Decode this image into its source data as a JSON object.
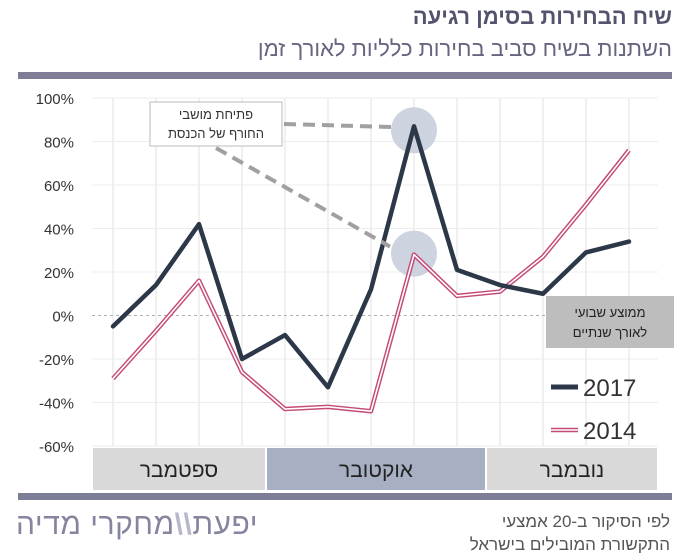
{
  "header": {
    "title": "שיח הבחירות בסימן רגיעה",
    "subtitle": "השתנות בשיח סביב בחירות כלליות לאורך זמן"
  },
  "chart_data": {
    "type": "line",
    "ylim": [
      -60,
      100
    ],
    "y_ticks": [
      "100%",
      "80%",
      "60%",
      "40%",
      "20%",
      "0%",
      "-20%",
      "-40%",
      "-60%"
    ],
    "y_tick_values": [
      100,
      80,
      60,
      40,
      20,
      0,
      -20,
      -40,
      -60
    ],
    "grid": true,
    "legend_position": "bottom-right",
    "months": [
      "ספטמבר",
      "אוקטובר",
      "נובמבר"
    ],
    "series": [
      {
        "name": "2017",
        "color": "#2c3748",
        "style": "solid",
        "values": [
          -5,
          14,
          42,
          -20,
          -9,
          -33,
          12,
          87,
          21,
          14,
          10,
          29,
          34
        ]
      },
      {
        "name": "2014",
        "color": "#c44a78",
        "style": "double",
        "values": [
          -29,
          -7,
          16,
          -26,
          -43,
          -42,
          -44,
          28,
          9,
          11,
          27,
          51,
          76
        ]
      }
    ],
    "reference_line": {
      "value": 0,
      "label": "ממוצע שבועי לאורך שנתיים"
    },
    "annotation": {
      "label_line1": "פתיחת מושבי",
      "label_line2": "החורף של הכנסת"
    }
  },
  "footer": {
    "source_line1": "לפי הסיקור ב-20 אמצעי",
    "source_line2": "התקשורת המובילים בישראל",
    "logo_part1": "יפעת",
    "logo_sep": "\\\\",
    "logo_part2": "מחקרי מדיה"
  },
  "colors": {
    "accent": "#7d7d97",
    "band_highlight": "#a7b0c2",
    "band": "#d9d9d9",
    "grid": "#e0e0e0",
    "callout": "#a0a0a0"
  }
}
